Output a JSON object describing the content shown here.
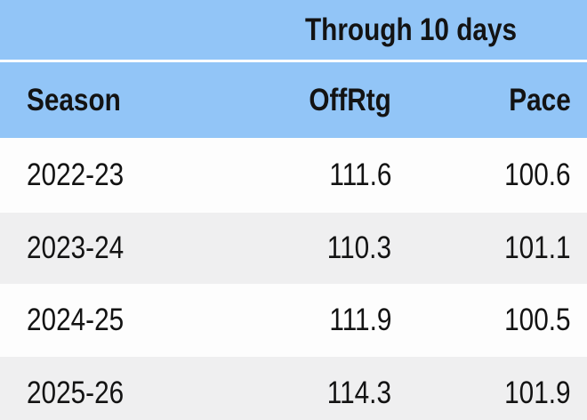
{
  "chart_data": {
    "type": "table",
    "title": "Through 10 days",
    "columns": [
      "Season",
      "OffRtg",
      "Pace"
    ],
    "rows": [
      [
        "2022-23",
        111.6,
        100.6
      ],
      [
        "2023-24",
        110.3,
        101.1
      ],
      [
        "2024-25",
        111.9,
        100.5
      ],
      [
        "2025-26",
        114.3,
        101.9
      ]
    ],
    "layout_hints": {
      "banner_spans_columns": [
        "OffRtg",
        "Pace"
      ],
      "season_column_align": "left",
      "numeric_columns_align": "right",
      "zebra_striping": true,
      "last_row_clipped_at_bottom": true
    }
  },
  "table": {
    "banner": "Through 10 days",
    "headers": {
      "season": "Season",
      "offrtg": "OffRtg",
      "pace": "Pace"
    },
    "rows": [
      {
        "season": "2022-23",
        "offrtg": "111.6",
        "pace": "100.6"
      },
      {
        "season": "2023-24",
        "offrtg": "110.3",
        "pace": "101.1"
      },
      {
        "season": "2024-25",
        "offrtg": "111.9",
        "pace": "100.5"
      },
      {
        "season": "2025-26",
        "offrtg": "114.3",
        "pace": "101.9"
      }
    ],
    "colors": {
      "header_blue": "#92c5f7",
      "row_white": "#fdfdfd",
      "row_gray": "#efeff0",
      "separator": "#ffffff",
      "text": "#131313"
    }
  }
}
